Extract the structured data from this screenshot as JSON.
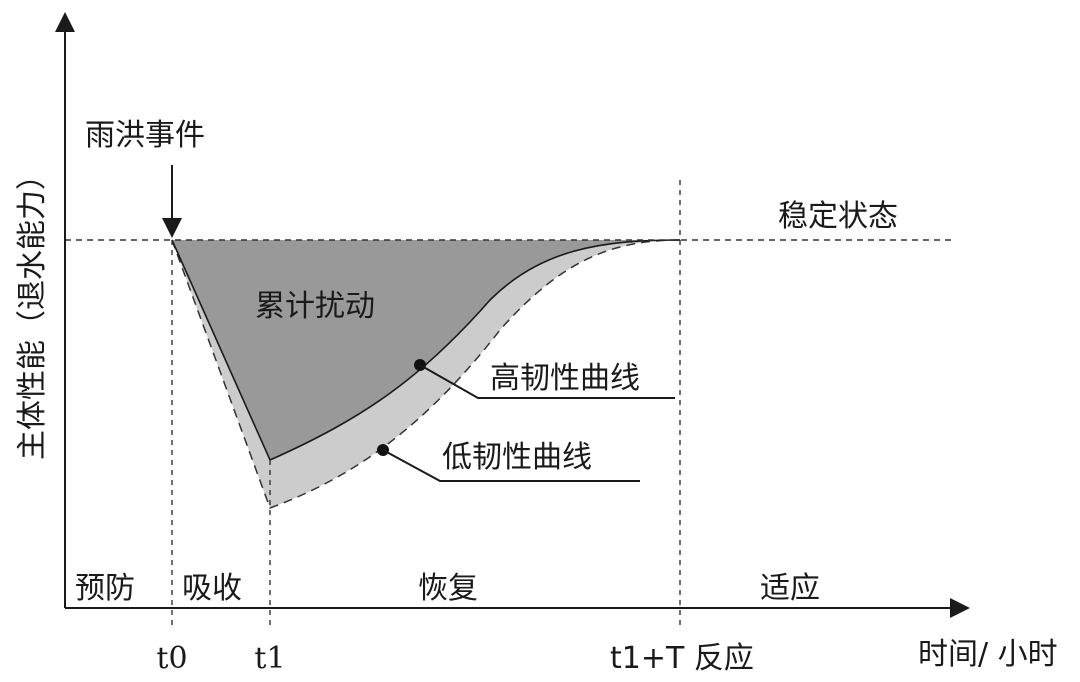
{
  "diagram": {
    "y_axis_label": "主体性能（退水能力）",
    "x_axis_label": "时间/ 小时",
    "event_label": "雨洪事件",
    "steady_state_label": "稳定状态",
    "cumulative_disturbance_label": "累计扰动",
    "curves": {
      "high_resilience": "高韧性曲线",
      "low_resilience": "低韧性曲线"
    },
    "phases": [
      "预防",
      "吸收",
      "恢复",
      "适应"
    ],
    "ticks": {
      "t0": "t0",
      "t1": "t1",
      "t1T": "t1+T 反应"
    },
    "colors": {
      "disturbance_fill": "#999999",
      "low_curve_fill": "#cccccc",
      "line": "#1a1a1a"
    }
  }
}
